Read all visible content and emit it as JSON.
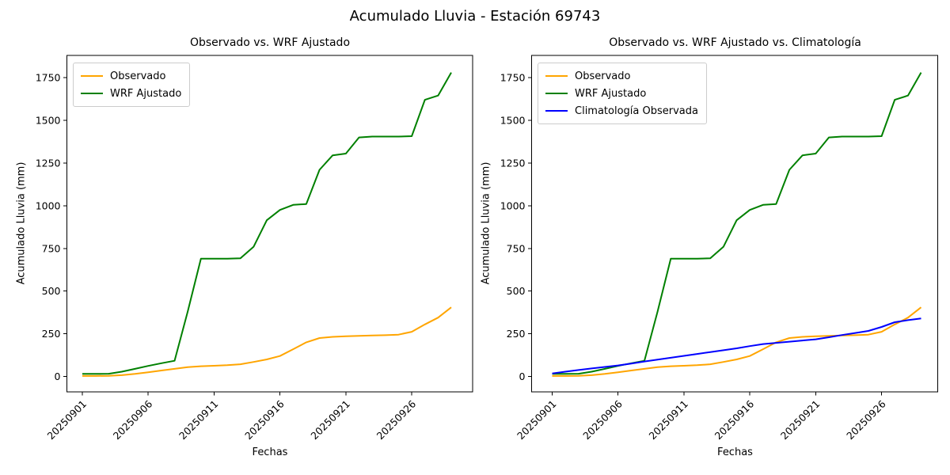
{
  "figure": {
    "suptitle": "Acumulado Lluvia - Estación 69743",
    "background": "#ffffff",
    "text_color": "#000000"
  },
  "chart_data": [
    {
      "type": "line",
      "title": "Observado vs. WRF Ajustado",
      "xlabel": "Fechas",
      "ylabel": "Acumulado Lluvia (mm)",
      "legend_position": "upper-left",
      "grid": false,
      "ylim": [
        -90,
        1880
      ],
      "y_ticks": [
        0,
        250,
        500,
        750,
        1000,
        1250,
        1500,
        1750
      ],
      "x_tick_labels": [
        "20250901",
        "20250906",
        "20250911",
        "20250916",
        "20250921",
        "20250926"
      ],
      "x_tick_indices": [
        0,
        5,
        10,
        15,
        20,
        25
      ],
      "x_tick_rotation": 45,
      "x": [
        "20250901",
        "20250902",
        "20250903",
        "20250904",
        "20250905",
        "20250906",
        "20250907",
        "20250908",
        "20250909",
        "20250910",
        "20250911",
        "20250912",
        "20250913",
        "20250914",
        "20250915",
        "20250916",
        "20250917",
        "20250918",
        "20250919",
        "20250920",
        "20250921",
        "20250922",
        "20250923",
        "20250924",
        "20250925",
        "20250926",
        "20250927",
        "20250928",
        "20250929"
      ],
      "series": [
        {
          "name": "Observado",
          "color": "#ffa500",
          "values": [
            3,
            3,
            4,
            8,
            15,
            25,
            35,
            45,
            55,
            60,
            63,
            66,
            72,
            85,
            100,
            120,
            160,
            200,
            225,
            232,
            236,
            238,
            240,
            242,
            245,
            262,
            305,
            345,
            405
          ]
        },
        {
          "name": "WRF Ajustado",
          "color": "#008000",
          "values": [
            15,
            15,
            16,
            28,
            45,
            62,
            78,
            92,
            380,
            690,
            690,
            690,
            692,
            760,
            915,
            975,
            1005,
            1010,
            1210,
            1295,
            1305,
            1400,
            1405,
            1405,
            1405,
            1407,
            1620,
            1645,
            1780
          ]
        }
      ]
    },
    {
      "type": "line",
      "title": "Observado vs. WRF Ajustado vs. Climatología",
      "xlabel": "Fechas",
      "ylabel": "Acumulado Lluvia (mm)",
      "legend_position": "upper-left",
      "grid": false,
      "ylim": [
        -90,
        1880
      ],
      "y_ticks": [
        0,
        250,
        500,
        750,
        1000,
        1250,
        1500,
        1750
      ],
      "x_tick_labels": [
        "20250901",
        "20250906",
        "20250911",
        "20250916",
        "20250921",
        "20250926"
      ],
      "x_tick_indices": [
        0,
        5,
        10,
        15,
        20,
        25
      ],
      "x_tick_rotation": 45,
      "x": [
        "20250901",
        "20250902",
        "20250903",
        "20250904",
        "20250905",
        "20250906",
        "20250907",
        "20250908",
        "20250909",
        "20250910",
        "20250911",
        "20250912",
        "20250913",
        "20250914",
        "20250915",
        "20250916",
        "20250917",
        "20250918",
        "20250919",
        "20250920",
        "20250921",
        "20250922",
        "20250923",
        "20250924",
        "20250925",
        "20250926",
        "20250927",
        "20250928",
        "20250929"
      ],
      "series": [
        {
          "name": "Observado",
          "color": "#ffa500",
          "values": [
            3,
            3,
            4,
            8,
            15,
            25,
            35,
            45,
            55,
            60,
            63,
            66,
            72,
            85,
            100,
            120,
            160,
            200,
            225,
            232,
            236,
            238,
            240,
            242,
            245,
            262,
            305,
            345,
            405
          ]
        },
        {
          "name": "WRF Ajustado",
          "color": "#008000",
          "values": [
            15,
            15,
            16,
            28,
            45,
            62,
            78,
            92,
            380,
            690,
            690,
            690,
            692,
            760,
            915,
            975,
            1005,
            1010,
            1210,
            1295,
            1305,
            1400,
            1405,
            1405,
            1405,
            1407,
            1620,
            1645,
            1780
          ]
        },
        {
          "name": "Climatología Observada",
          "color": "#0000ff",
          "values": [
            18,
            28,
            38,
            47,
            56,
            65,
            76,
            88,
            99,
            110,
            121,
            132,
            143,
            154,
            165,
            178,
            190,
            197,
            204,
            211,
            218,
            230,
            243,
            255,
            267,
            290,
            318,
            330,
            340
          ]
        }
      ]
    }
  ]
}
